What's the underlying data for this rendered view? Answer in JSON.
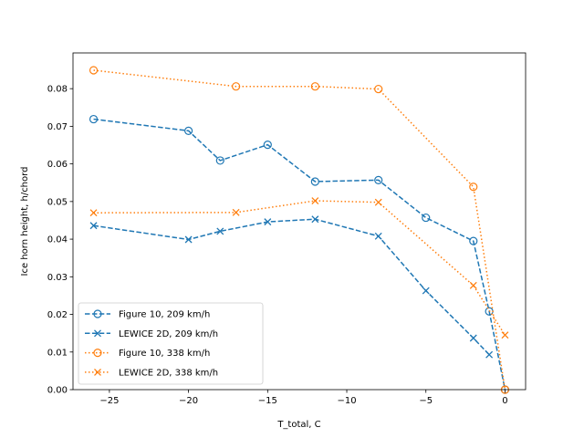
{
  "chart_data": {
    "type": "line",
    "xlabel": "T_total, C",
    "ylabel": "Ice horn height, h/chord",
    "xlim": [
      -27.3,
      1.3
    ],
    "ylim": [
      0.0,
      0.0895
    ],
    "xticks": [
      -25,
      -20,
      -15,
      -10,
      -5,
      0
    ],
    "xtick_labels": [
      "−25",
      "−20",
      "−15",
      "−10",
      "−5",
      "0"
    ],
    "yticks": [
      0.0,
      0.01,
      0.02,
      0.03,
      0.04,
      0.05,
      0.06,
      0.07,
      0.08
    ],
    "ytick_labels": [
      "0.00",
      "0.01",
      "0.02",
      "0.03",
      "0.04",
      "0.05",
      "0.06",
      "0.07",
      "0.08"
    ],
    "grid": false,
    "legend_position": "lower-left",
    "series": [
      {
        "name": "Figure 10, 209 km/h",
        "color": "#1f77b4",
        "linestyle": "dashed",
        "marker": "circle-open",
        "x": [
          -26,
          -20,
          -18,
          -15,
          -12,
          -8,
          -5,
          -2,
          -1,
          0
        ],
        "y": [
          0.0719,
          0.0688,
          0.0609,
          0.0651,
          0.0553,
          0.0557,
          0.0457,
          0.0395,
          0.0208,
          0.0
        ]
      },
      {
        "name": "LEWICE 2D, 209 km/h",
        "color": "#1f77b4",
        "linestyle": "dashed",
        "marker": "x",
        "x": [
          -26,
          -20,
          -18,
          -15,
          -12,
          -8,
          -5,
          -2,
          -1
        ],
        "y": [
          0.0436,
          0.0399,
          0.0421,
          0.0446,
          0.0453,
          0.0408,
          0.0263,
          0.0137,
          0.0093
        ]
      },
      {
        "name": "Figure 10, 338 km/h",
        "color": "#ff7f0e",
        "linestyle": "dotted",
        "marker": "circle-open",
        "x": [
          -26,
          -17,
          -12,
          -8,
          -2,
          0
        ],
        "y": [
          0.0849,
          0.0806,
          0.0806,
          0.0799,
          0.0539,
          0.0
        ]
      },
      {
        "name": "LEWICE 2D, 338 km/h",
        "color": "#ff7f0e",
        "linestyle": "dotted",
        "marker": "x",
        "x": [
          -26,
          -17,
          -12,
          -8,
          -2,
          0
        ],
        "y": [
          0.047,
          0.0471,
          0.0502,
          0.0498,
          0.0277,
          0.0145
        ]
      }
    ]
  }
}
